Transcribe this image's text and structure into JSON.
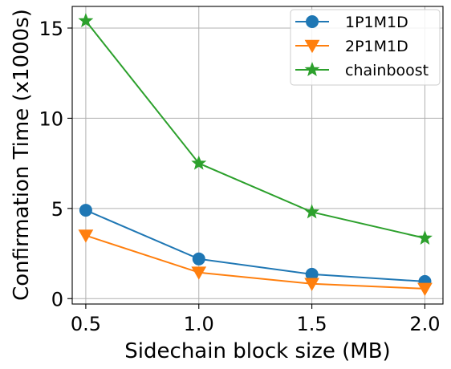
{
  "chart_data": {
    "type": "line",
    "xlabel": "Sidechain block size (MB)",
    "ylabel": "Confirmation Time (x1000s)",
    "x": [
      0.5,
      1.0,
      1.5,
      2.0
    ],
    "xticks": [
      0.5,
      1.0,
      1.5,
      2.0
    ],
    "xtick_labels": [
      "0.5",
      "1.0",
      "1.5",
      "2.0"
    ],
    "xlim": [
      0.44,
      2.08
    ],
    "yticks": [
      0,
      5,
      10,
      15
    ],
    "ytick_labels": [
      "0",
      "5",
      "10",
      "15"
    ],
    "ylim": [
      -0.3,
      16.2
    ],
    "grid": true,
    "legend_position": "top-right",
    "series": [
      {
        "name": "1P1M1D",
        "color": "#1f77b4",
        "marker": "circle",
        "values": [
          4.9,
          2.2,
          1.35,
          0.95
        ]
      },
      {
        "name": "2P1M1D",
        "color": "#ff7f0e",
        "marker": "triangle-down",
        "values": [
          3.5,
          1.45,
          0.82,
          0.55
        ]
      },
      {
        "name": "chainboost",
        "color": "#2ca02c",
        "marker": "star",
        "values": [
          15.4,
          7.5,
          4.8,
          3.35
        ]
      }
    ]
  }
}
